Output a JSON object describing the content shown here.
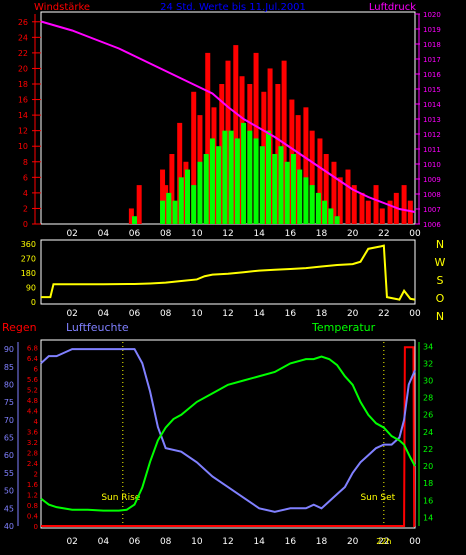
{
  "header": {
    "title": "24 Std. Werte bis 11.Jul.2001",
    "left_label": "Windstärke",
    "right_label": "Luftdruck"
  },
  "colors": {
    "background": "#000000",
    "frame": "#ffffff",
    "wind_max": "#ff0000",
    "wind_avg": "#00ff00",
    "pressure": "#ff00ff",
    "direction": "#ffff00",
    "humidity": "#8080ff",
    "temperature": "#00ff00",
    "rain": "#ff0000",
    "title": "#0000ff",
    "axis_right_wind": "#ffff00"
  },
  "x_ticks": [
    "02",
    "04",
    "06",
    "08",
    "10",
    "12",
    "14",
    "16",
    "18",
    "20",
    "22",
    "00"
  ],
  "panel1": {
    "left_axis": [
      "0",
      "2",
      "4",
      "6",
      "8",
      "10",
      "12",
      "14",
      "16",
      "18",
      "20",
      "22",
      "24",
      "26"
    ],
    "right_axis": [
      "1006",
      "1007",
      "1008",
      "1009",
      "1010",
      "1011",
      "1012",
      "1013",
      "1014",
      "1015",
      "1016",
      "1017",
      "1018",
      "1019",
      "1020"
    ]
  },
  "panel2": {
    "left_axis": [
      "0",
      "90",
      "180",
      "270",
      "360"
    ],
    "right_axis": [
      "N",
      "W",
      "S",
      "O",
      "N"
    ]
  },
  "panel3": {
    "left_label": "Regen",
    "mid_label": "Luftfeuchte",
    "right_label": "Temperatur",
    "humidity_axis": [
      "40",
      "45",
      "50",
      "55",
      "60",
      "65",
      "70",
      "75",
      "80",
      "85",
      "90"
    ],
    "rain_axis": [
      "0",
      "0.4",
      "0.8",
      "1.2",
      "1.6",
      "2",
      "2.4",
      "2.8",
      "3.2",
      "3.6",
      "4",
      "4.4",
      "4.8",
      "5.2",
      "5.6",
      "6",
      "6.4",
      "6.8"
    ],
    "temp_axis": [
      "14",
      "16",
      "18",
      "20",
      "22",
      "24",
      "26",
      "28",
      "30",
      "32",
      "34"
    ],
    "sunrise": "Sun Rise",
    "sunset": "Sun Set",
    "sunset_time": "22h"
  },
  "chart_data": [
    {
      "type": "bar",
      "title": "24 Std. Werte bis 11.Jul.2001",
      "ylabel": "Windstärke",
      "y2label": "Luftdruck",
      "x_unit": "hour",
      "ylim": [
        0,
        27
      ],
      "y2lim": [
        1006,
        1020
      ],
      "series": [
        {
          "name": "Windstärke max",
          "x": [
            5.8,
            6.3,
            7.8,
            8.0,
            8.4,
            8.9,
            9.3,
            9.8,
            10.2,
            10.7,
            11.1,
            11.6,
            12.0,
            12.5,
            12.9,
            13.4,
            13.8,
            14.3,
            14.7,
            15.2,
            15.6,
            16.1,
            16.5,
            17.0,
            17.4,
            17.9,
            18.3,
            18.8,
            19.2,
            19.7,
            20.1,
            20.6,
            21.0,
            21.5,
            21.9,
            22.4,
            22.8,
            23.3,
            23.7
          ],
          "values": [
            2,
            5,
            7,
            5,
            9,
            13,
            8,
            17,
            14,
            22,
            15,
            18,
            21,
            23,
            19,
            18,
            22,
            17,
            20,
            18,
            21,
            16,
            14,
            15,
            12,
            11,
            9,
            8,
            6,
            7,
            5,
            4,
            3,
            5,
            2,
            3,
            4,
            5,
            3
          ]
        },
        {
          "name": "Windstärke",
          "x": [
            6.0,
            7.8,
            8.2,
            8.6,
            9.0,
            9.4,
            9.8,
            10.2,
            10.6,
            11.0,
            11.4,
            11.8,
            12.2,
            12.6,
            13.0,
            13.4,
            13.8,
            14.2,
            14.6,
            15.0,
            15.4,
            15.8,
            16.2,
            16.6,
            17.0,
            17.4,
            17.8,
            18.2,
            18.6,
            19.0
          ],
          "values": [
            1,
            3,
            4,
            3,
            6,
            7,
            5,
            8,
            9,
            11,
            10,
            12,
            12,
            11,
            13,
            12,
            11,
            10,
            12,
            9,
            10,
            8,
            9,
            7,
            6,
            5,
            4,
            3,
            2,
            1
          ]
        },
        {
          "name": "Luftdruck",
          "x": [
            0,
            1,
            2,
            3,
            4,
            5,
            6,
            7,
            8,
            9,
            10,
            11,
            12,
            13,
            14,
            15,
            16,
            17,
            18,
            19,
            20,
            21,
            22,
            23,
            24
          ],
          "values": [
            1019.5,
            1019.2,
            1018.9,
            1018.5,
            1018.1,
            1017.7,
            1017.2,
            1016.7,
            1016.2,
            1015.7,
            1015.2,
            1014.7,
            1013.8,
            1013.0,
            1012.4,
            1011.8,
            1011.1,
            1010.4,
            1009.7,
            1009.0,
            1008.3,
            1007.8,
            1007.4,
            1007.0,
            1006.8
          ]
        }
      ]
    },
    {
      "type": "line",
      "ylabel": "Windrichtung",
      "ylim": [
        0,
        360
      ],
      "series": [
        {
          "name": "Windrichtung",
          "x": [
            0,
            0.6,
            0.8,
            2,
            4,
            6,
            7,
            8,
            9,
            10,
            10.5,
            11,
            12,
            13,
            14,
            15,
            16,
            17,
            18,
            19,
            20,
            20.5,
            21,
            21.8,
            22,
            22.2,
            23,
            23.3,
            23.7,
            24
          ],
          "values": [
            30,
            30,
            110,
            110,
            110,
            112,
            115,
            120,
            130,
            140,
            160,
            170,
            175,
            185,
            195,
            200,
            205,
            210,
            220,
            230,
            235,
            250,
            330,
            345,
            350,
            30,
            15,
            70,
            20,
            15
          ]
        }
      ]
    },
    {
      "type": "line",
      "title": "",
      "ylabel": "Luftfeuchte",
      "y2label": "Temperatur",
      "ylim": [
        40,
        92
      ],
      "y2lim": [
        13,
        34.5
      ],
      "series": [
        {
          "name": "Luftfeuchte",
          "x": [
            0,
            0.5,
            1,
            1.5,
            2,
            3,
            4,
            5,
            6,
            6.5,
            7,
            7.5,
            8,
            9,
            10,
            11,
            12,
            13,
            14,
            15,
            16,
            17,
            17.5,
            18,
            18.5,
            19,
            19.5,
            20,
            20.5,
            21,
            21.5,
            22,
            22.5,
            23,
            23.3,
            23.6,
            24
          ],
          "values": [
            86,
            88,
            88,
            89,
            90,
            90,
            90,
            90,
            90,
            86,
            78,
            68,
            62,
            61,
            58,
            54,
            51,
            48,
            45,
            44,
            45,
            45,
            46,
            45,
            47,
            49,
            51,
            55,
            58,
            60,
            62,
            63,
            63,
            65,
            70,
            80,
            84
          ]
        },
        {
          "name": "Temperatur",
          "x": [
            0,
            0.5,
            1,
            2,
            3,
            4,
            5,
            5.5,
            6,
            6.5,
            7,
            7.5,
            8,
            8.5,
            9,
            10,
            11,
            12,
            13,
            14,
            15,
            16,
            17,
            17.5,
            18,
            18.5,
            19,
            19.5,
            20,
            20.5,
            21,
            21.5,
            22,
            22.5,
            23,
            23.3,
            23.7,
            24
          ],
          "values": [
            16.2,
            15.5,
            15.2,
            14.9,
            14.9,
            14.8,
            14.8,
            14.9,
            15.5,
            17.5,
            20.5,
            23,
            24.5,
            25.5,
            26,
            27.5,
            28.5,
            29.5,
            30,
            30.5,
            31,
            32,
            32.5,
            32.5,
            32.8,
            32.5,
            31.8,
            30.5,
            29.5,
            27.5,
            26,
            25,
            24.5,
            23.5,
            23,
            22.5,
            21,
            20
          ]
        },
        {
          "name": "Regen",
          "x": [
            0,
            23.3,
            23.35,
            23.9,
            23.95,
            24
          ],
          "values": [
            0,
            0,
            6.8,
            6.8,
            0,
            0
          ]
        }
      ]
    }
  ]
}
